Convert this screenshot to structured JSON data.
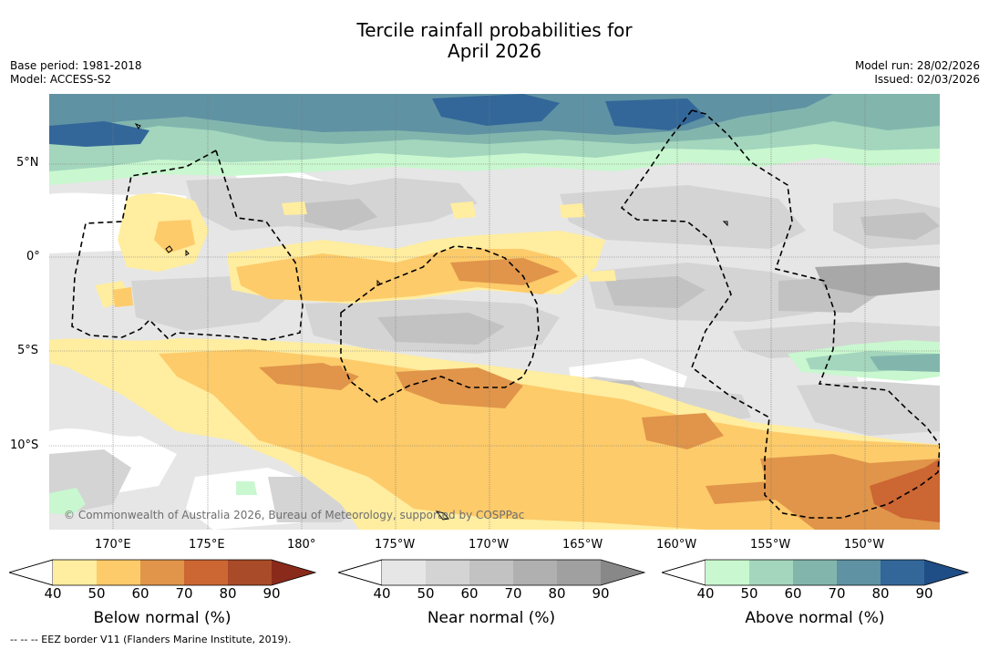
{
  "title_line1": "Tercile rainfall probabilities for",
  "title_line2": "April 2026",
  "meta_left": {
    "base_period": "Base period: 1981-2018",
    "model": "Model: ACCESS-S2"
  },
  "meta_right": {
    "model_run": "Model run: 28/02/2026",
    "issued": "Issued: 02/03/2026"
  },
  "map": {
    "lat_labels": [
      "5°N",
      "0°",
      "5°S",
      "10°S"
    ],
    "lon_labels": [
      "170°E",
      "175°E",
      "180°",
      "175°W",
      "170°W",
      "165°W",
      "160°W",
      "155°W",
      "150°W"
    ],
    "copyright": "© Commonwealth of Australia 2026, Bureau of Meteorology, supported by COSPPac"
  },
  "colorbars": [
    {
      "title": "Below normal (%)",
      "ticks": [
        "40",
        "50",
        "60",
        "70",
        "80",
        "90"
      ],
      "colors": [
        "#ffeda0",
        "#fdcb6a",
        "#e0954a",
        "#cc6633",
        "#a94a28",
        "#8a2a1a"
      ]
    },
    {
      "title": "Near normal (%)",
      "ticks": [
        "40",
        "50",
        "60",
        "70",
        "80",
        "90"
      ],
      "colors": [
        "#e6e6e6",
        "#d4d4d4",
        "#c2c2c2",
        "#b0b0b0",
        "#a0a0a0",
        "#888888"
      ]
    },
    {
      "title": "Above normal (%)",
      "ticks": [
        "40",
        "50",
        "60",
        "70",
        "80",
        "90"
      ],
      "colors": [
        "#c9f7cf",
        "#a3d6bd",
        "#82b6ad",
        "#5f92a3",
        "#336799",
        "#1f4d86"
      ]
    }
  ],
  "footnote": "--  --  -- EEZ border V11 (Flanders Marine Institute, 2019)."
}
